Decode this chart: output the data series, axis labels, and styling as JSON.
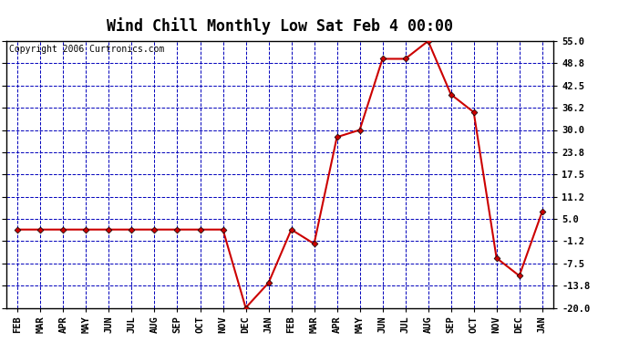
{
  "title": "Wind Chill Monthly Low Sat Feb 4 00:00",
  "copyright": "Copyright 2006 Curtronics.com",
  "x_labels": [
    "FEB",
    "MAR",
    "APR",
    "MAY",
    "JUN",
    "JUL",
    "AUG",
    "SEP",
    "OCT",
    "NOV",
    "DEC",
    "JAN",
    "FEB",
    "MAR",
    "APR",
    "MAY",
    "JUN",
    "JUL",
    "AUG",
    "SEP",
    "OCT",
    "NOV",
    "DEC",
    "JAN"
  ],
  "y_values": [
    2.0,
    2.0,
    2.0,
    2.0,
    2.0,
    2.0,
    2.0,
    2.0,
    2.0,
    2.0,
    -20.0,
    -13.0,
    2.0,
    -2.0,
    28.0,
    30.0,
    50.0,
    50.0,
    55.0,
    40.0,
    35.0,
    -6.0,
    -11.0,
    7.0
  ],
  "ylim": [
    -20.0,
    55.0
  ],
  "yticks": [
    55.0,
    48.8,
    42.5,
    36.2,
    30.0,
    23.8,
    17.5,
    11.2,
    5.0,
    -1.2,
    -7.5,
    -13.8,
    -20.0
  ],
  "line_color": "#cc0000",
  "marker_color": "#000000",
  "bg_color": "#ffffff",
  "plot_bg_color": "#ffffff",
  "grid_color": "#0000bb",
  "border_color": "#000000",
  "title_fontsize": 12,
  "copyright_fontsize": 7,
  "tick_fontsize": 7.5
}
